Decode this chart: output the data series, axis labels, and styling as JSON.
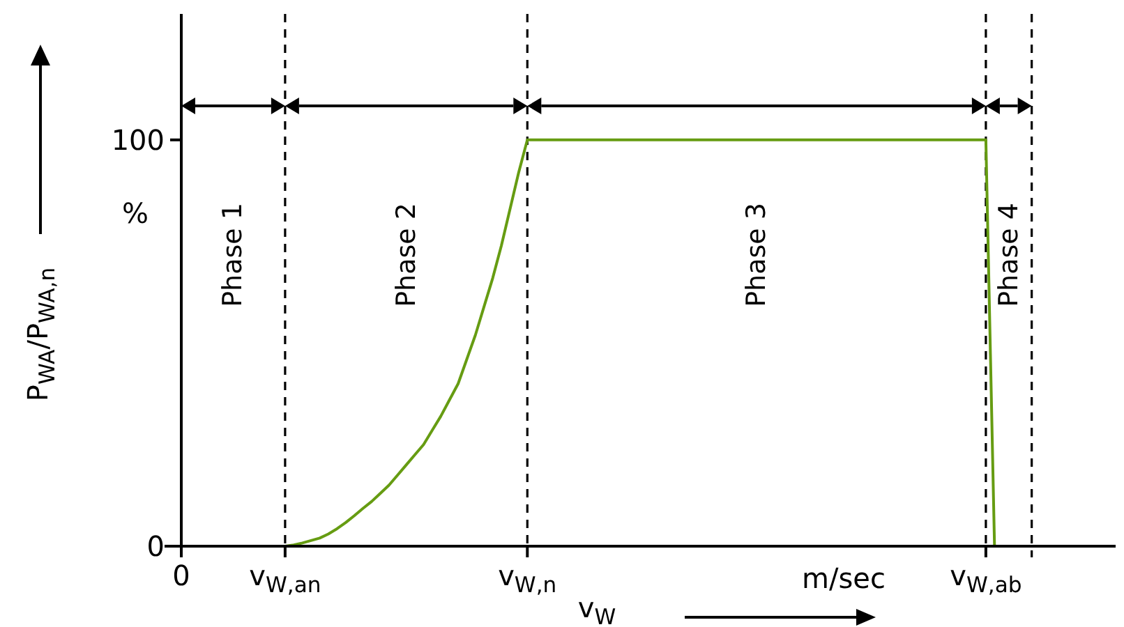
{
  "chart_data": {
    "type": "line",
    "xlabel": "v$_{W}$",
    "ylabel": "P$_{WA}$/P$_{WA,n}$",
    "categories": [
      "0",
      null,
      null,
      null,
      null,
      null,
      null,
      null,
      null,
      null,
      null,
      null,
      "v$_{W,an}$",
      null,
      null,
      null,
      null,
      null,
      null,
      null,
      null,
      null,
      null,
      null,
      null,
      null,
      null,
      null,
      null,
      null,
      null,
      null,
      null,
      null,
      null,
      null,
      null,
      null,
      null,
      null,
      "v$_{W,n}$",
      null,
      null,
      null,
      null,
      null,
      null,
      null,
      null,
      null,
      null,
      null,
      null,
      null,
      null,
      null,
      null,
      null,
      null,
      null,
      null,
      null,
      null,
      null,
      null,
      null,
      null,
      null,
      null,
      null,
      null,
      null,
      null,
      null,
      null,
      null,
      null,
      null,
      null,
      null,
      null,
      null,
      null,
      null,
      null,
      null,
      null,
      null,
      null,
      null,
      null,
      null,
      null,
      "v$_{W,ab}$",
      null,
      null,
      null,
      null,
      null,
      null,
      null,
      null,
      null,
      null,
      null,
      null,
      null,
      null,
      null
    ],
    "series": [
      {
        "color": "#669c12",
        "values": [
          null,
          null,
          null,
          null,
          null,
          null,
          null,
          null,
          null,
          null,
          null,
          null,
          0,
          0.3,
          0.8,
          1.4,
          2,
          3,
          4.3,
          5.8,
          7.5,
          9.3,
          11,
          13,
          15,
          17.5,
          20,
          22.5,
          25,
          28.5,
          32,
          36,
          40,
          46,
          52,
          59,
          66,
          74,
          83,
          92,
          100,
          100,
          100,
          100,
          100,
          100,
          100,
          100,
          100,
          100,
          100,
          100,
          100,
          100,
          100,
          100,
          100,
          100,
          100,
          100,
          100,
          100,
          100,
          100,
          100,
          100,
          100,
          100,
          100,
          100,
          100,
          100,
          100,
          100,
          100,
          100,
          100,
          100,
          100,
          100,
          100,
          100,
          100,
          100,
          100,
          100,
          100,
          100,
          100,
          100,
          100,
          100,
          100,
          100,
          0,
          null,
          null,
          null,
          null,
          null,
          null,
          null,
          null,
          null,
          null,
          null,
          null,
          null,
          null
        ]
      }
    ],
    "ylim": [
      0,
      131
    ],
    "yticks": [
      0,
      100
    ],
    "ref_lines": [
      {
        "axis": "x",
        "value": "v$_{W,an}$",
        "line_style": "dashed"
      },
      {
        "axis": "x",
        "value": "v$_{W,n}$",
        "line_style": "dashed"
      },
      {
        "axis": "x",
        "value": "v$_{W,ab}$",
        "line_style": "dashed"
      }
    ],
    "annotations": [
      "%",
      "m/sec",
      "Phase 1",
      "Phase 2",
      "Phase 3",
      "Phase 4"
    ],
    "grid": false,
    "marker": "none",
    "line_style": "solid"
  }
}
